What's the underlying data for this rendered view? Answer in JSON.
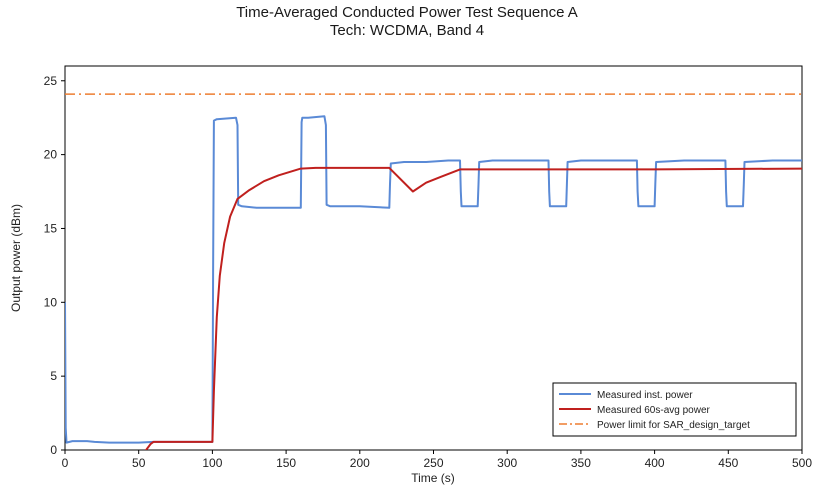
{
  "chart_data": {
    "type": "line",
    "title": "Time-Averaged Conducted Power Test Sequence A",
    "subtitle": "Tech: WCDMA, Band 4",
    "xlabel": "Time (s)",
    "ylabel": "Output power (dBm)",
    "xlim": [
      0,
      500
    ],
    "ylim": [
      0,
      26
    ],
    "xticks": [
      0,
      50,
      100,
      150,
      200,
      250,
      300,
      350,
      400,
      450,
      500
    ],
    "yticks": [
      0,
      5,
      10,
      15,
      20,
      25
    ],
    "grid": false,
    "legend_position": "bottom-right",
    "series": [
      {
        "name": "Measured inst. power",
        "color": "#5a8ad6",
        "style": "solid",
        "x": [
          0,
          0.5,
          1,
          5,
          10,
          15,
          20,
          30,
          40,
          50,
          60,
          70,
          80,
          90,
          100,
          100.5,
          101,
          103,
          116,
          117,
          117.5,
          120,
          130,
          160,
          160.5,
          161,
          165,
          176,
          177,
          177.5,
          180,
          200,
          220,
          220.5,
          221,
          230,
          245,
          260,
          268,
          268.5,
          269,
          280,
          280.5,
          281,
          290,
          300,
          310,
          320,
          328,
          328.5,
          329,
          340,
          340.5,
          341,
          350,
          370,
          388,
          388.5,
          389,
          400,
          400.5,
          401,
          420,
          440,
          448,
          448.5,
          449,
          460,
          460.5,
          461,
          480,
          500
        ],
        "y": [
          10,
          1.5,
          0.5,
          0.6,
          0.6,
          0.6,
          0.55,
          0.5,
          0.5,
          0.5,
          0.55,
          0.55,
          0.55,
          0.55,
          0.55,
          12,
          22.3,
          22.4,
          22.5,
          22,
          16.6,
          16.5,
          16.4,
          16.4,
          22.2,
          22.5,
          22.5,
          22.6,
          22,
          16.6,
          16.5,
          16.5,
          16.4,
          18,
          19.4,
          19.5,
          19.5,
          19.6,
          19.6,
          17.5,
          16.5,
          16.5,
          18,
          19.5,
          19.6,
          19.6,
          19.6,
          19.6,
          19.6,
          17.5,
          16.5,
          16.5,
          18,
          19.5,
          19.6,
          19.6,
          19.6,
          17.5,
          16.5,
          16.5,
          18,
          19.5,
          19.6,
          19.6,
          19.6,
          17.5,
          16.5,
          16.5,
          18,
          19.5,
          19.6,
          19.6
        ]
      },
      {
        "name": "Measured 60s-avg power",
        "color": "#c0201e",
        "style": "solid",
        "x": [
          52,
          55,
          58,
          60,
          70,
          80,
          90,
          100,
          101,
          103,
          105,
          108,
          112,
          117,
          125,
          135,
          145,
          160,
          170,
          180,
          200,
          220,
          236,
          245,
          255,
          268,
          280,
          300,
          400,
          500
        ],
        "y": [
          -0.5,
          0,
          0.4,
          0.55,
          0.55,
          0.55,
          0.55,
          0.55,
          4,
          9,
          11.8,
          14,
          15.8,
          17,
          17.6,
          18.2,
          18.6,
          19.05,
          19.1,
          19.1,
          19.1,
          19.1,
          17.5,
          18.1,
          18.5,
          19.0,
          19.0,
          19.0,
          19.0,
          19.05
        ]
      },
      {
        "name": "Power limit for SAR_design_target",
        "color": "#ed7d31",
        "style": "dash-dot",
        "x": [
          0,
          500
        ],
        "y": [
          24.1,
          24.1
        ]
      }
    ]
  }
}
